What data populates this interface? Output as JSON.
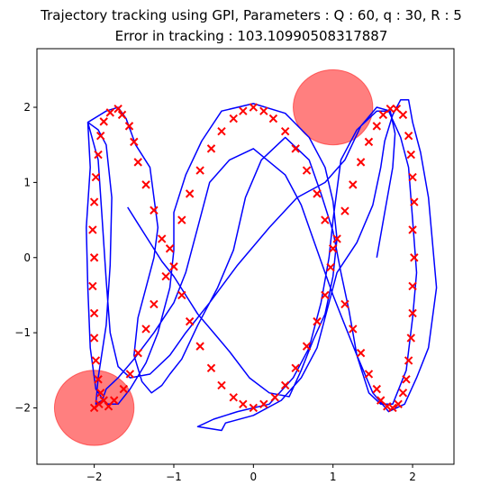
{
  "chart_data": {
    "type": "scatter",
    "title": "Trajectory tracking using GPI, Parameters : Q : 60, q : 30, R : 5",
    "subtitle": "Error in tracking : 103.10990508317887",
    "xlabel": "",
    "ylabel": "",
    "xlim": [
      -2.72,
      2.52
    ],
    "ylim": [
      -2.75,
      2.78
    ],
    "xticks": [
      -2,
      -1,
      0,
      1,
      2
    ],
    "yticks": [
      -2,
      -1,
      0,
      1,
      2
    ],
    "xtick_labels": [
      "−2",
      "−1",
      "0",
      "1",
      "2"
    ],
    "ytick_labels": [
      "−2",
      "−1",
      "0",
      "1",
      "2"
    ],
    "grid": false,
    "colors": {
      "reference": "#ff0000",
      "trajectory": "#0000ff",
      "obstacle": "#ff0000"
    },
    "obstacles": [
      {
        "cx": 1.0,
        "cy": 2.0,
        "r": 0.5
      },
      {
        "cx": -2.0,
        "cy": -2.0,
        "r": 0.5
      }
    ],
    "reference_points": [
      [
        -2.0,
        -2.0
      ],
      [
        -1.94,
        -1.95
      ],
      [
        -1.88,
        -1.9
      ],
      [
        -1.92,
        -1.8
      ],
      [
        -1.95,
        -1.62
      ],
      [
        -1.98,
        -1.37
      ],
      [
        -2.0,
        -1.07
      ],
      [
        -2.0,
        -0.74
      ],
      [
        -2.02,
        -0.38
      ],
      [
        -2.0,
        0.0
      ],
      [
        -2.02,
        0.37
      ],
      [
        -2.0,
        0.74
      ],
      [
        -1.98,
        1.07
      ],
      [
        -1.95,
        1.37
      ],
      [
        -1.92,
        1.62
      ],
      [
        -1.88,
        1.81
      ],
      [
        -1.8,
        1.93
      ],
      [
        -1.7,
        1.98
      ],
      [
        -1.65,
        1.9
      ],
      [
        -1.56,
        1.75
      ],
      [
        -1.5,
        1.54
      ],
      [
        -1.45,
        1.27
      ],
      [
        -1.35,
        0.97
      ],
      [
        -1.25,
        0.63
      ],
      [
        -1.15,
        0.25
      ],
      [
        -1.05,
        0.12
      ],
      [
        -1.0,
        -0.12
      ],
      [
        -1.1,
        -0.25
      ],
      [
        -1.25,
        -0.62
      ],
      [
        -1.35,
        -0.95
      ],
      [
        -1.45,
        -1.27
      ],
      [
        -1.55,
        -1.55
      ],
      [
        -1.63,
        -1.75
      ],
      [
        -1.75,
        -1.9
      ],
      [
        -1.82,
        -1.98
      ],
      [
        -0.9,
        -0.5
      ],
      [
        -0.8,
        -0.85
      ],
      [
        -0.67,
        -1.18
      ],
      [
        -0.53,
        -1.47
      ],
      [
        -0.4,
        -1.7
      ],
      [
        -0.25,
        -1.86
      ],
      [
        -0.13,
        -1.95
      ],
      [
        0.0,
        -2.0
      ],
      [
        0.13,
        -1.95
      ],
      [
        0.27,
        -1.86
      ],
      [
        0.4,
        -1.7
      ],
      [
        0.53,
        -1.47
      ],
      [
        0.67,
        -1.18
      ],
      [
        0.8,
        -0.85
      ],
      [
        0.9,
        -0.5
      ],
      [
        0.97,
        -0.13
      ],
      [
        1.0,
        0.12
      ],
      [
        1.05,
        0.25
      ],
      [
        0.9,
        0.5
      ],
      [
        0.8,
        0.85
      ],
      [
        0.67,
        1.16
      ],
      [
        0.53,
        1.45
      ],
      [
        0.4,
        1.68
      ],
      [
        0.25,
        1.85
      ],
      [
        0.13,
        1.95
      ],
      [
        0.0,
        2.0
      ],
      [
        -0.13,
        1.95
      ],
      [
        -0.25,
        1.85
      ],
      [
        -0.4,
        1.68
      ],
      [
        -0.53,
        1.45
      ],
      [
        -0.67,
        1.16
      ],
      [
        -0.8,
        0.85
      ],
      [
        -0.9,
        0.5
      ],
      [
        1.15,
        0.62
      ],
      [
        1.25,
        0.97
      ],
      [
        1.35,
        1.27
      ],
      [
        1.45,
        1.54
      ],
      [
        1.55,
        1.75
      ],
      [
        1.63,
        1.9
      ],
      [
        1.72,
        1.98
      ],
      [
        1.8,
        1.98
      ],
      [
        1.88,
        1.9
      ],
      [
        1.95,
        1.62
      ],
      [
        1.98,
        1.37
      ],
      [
        2.0,
        1.07
      ],
      [
        2.02,
        0.74
      ],
      [
        2.0,
        0.37
      ],
      [
        2.02,
        0.0
      ],
      [
        2.0,
        -0.38
      ],
      [
        2.0,
        -0.74
      ],
      [
        1.98,
        -1.07
      ],
      [
        1.95,
        -1.37
      ],
      [
        1.92,
        -1.62
      ],
      [
        1.88,
        -1.8
      ],
      [
        1.82,
        -1.95
      ],
      [
        1.75,
        -2.0
      ],
      [
        1.68,
        -1.98
      ],
      [
        1.6,
        -1.9
      ],
      [
        1.55,
        -1.75
      ],
      [
        1.45,
        -1.55
      ],
      [
        1.35,
        -1.27
      ],
      [
        1.25,
        -0.95
      ],
      [
        1.15,
        -0.62
      ]
    ],
    "trajectory": [
      [
        -1.58,
        0.67
      ],
      [
        -1.45,
        0.45
      ],
      [
        -1.3,
        0.2
      ],
      [
        -1.15,
        -0.05
      ],
      [
        -1.0,
        -0.25
      ],
      [
        -0.85,
        -0.5
      ],
      [
        -0.7,
        -0.75
      ],
      [
        -0.5,
        -1.0
      ],
      [
        -0.3,
        -1.25
      ],
      [
        -0.05,
        -1.6
      ],
      [
        0.2,
        -1.8
      ],
      [
        0.45,
        -1.85
      ],
      [
        0.6,
        -1.5
      ],
      [
        0.75,
        -1.1
      ],
      [
        0.9,
        -0.75
      ],
      [
        1.0,
        -0.25
      ],
      [
        1.05,
        0.25
      ],
      [
        1.0,
        0.75
      ],
      [
        0.9,
        1.2
      ],
      [
        0.7,
        1.6
      ],
      [
        0.4,
        1.92
      ],
      [
        0.0,
        2.05
      ],
      [
        -0.4,
        1.95
      ],
      [
        -0.65,
        1.55
      ],
      [
        -0.85,
        1.1
      ],
      [
        -1.0,
        0.6
      ],
      [
        -1.0,
        0.1
      ],
      [
        -1.05,
        -0.4
      ],
      [
        -1.2,
        -1.0
      ],
      [
        -1.35,
        -1.4
      ],
      [
        -1.55,
        -1.75
      ],
      [
        -1.7,
        -1.95
      ],
      [
        -1.85,
        -1.95
      ],
      [
        -1.98,
        -1.75
      ],
      [
        -2.05,
        -1.2
      ],
      [
        -2.08,
        -0.4
      ],
      [
        -2.1,
        0.4
      ],
      [
        -2.05,
        1.2
      ],
      [
        -2.08,
        1.8
      ],
      [
        -1.85,
        1.95
      ],
      [
        -1.7,
        2.0
      ],
      [
        -1.6,
        1.85
      ],
      [
        -1.48,
        1.5
      ],
      [
        -1.3,
        1.2
      ],
      [
        -1.25,
        0.8
      ],
      [
        -1.2,
        0.4
      ],
      [
        -1.25,
        0.0
      ],
      [
        -1.35,
        -0.4
      ],
      [
        -1.45,
        -0.8
      ],
      [
        -1.5,
        -1.3
      ],
      [
        -1.4,
        -1.65
      ],
      [
        -1.28,
        -1.8
      ],
      [
        -1.15,
        -1.7
      ],
      [
        -1.05,
        -1.55
      ],
      [
        -0.9,
        -1.35
      ],
      [
        -0.7,
        -0.9
      ],
      [
        -0.45,
        -0.4
      ],
      [
        -0.25,
        0.1
      ],
      [
        -0.1,
        0.8
      ],
      [
        0.1,
        1.3
      ],
      [
        0.4,
        1.6
      ],
      [
        0.7,
        1.3
      ],
      [
        0.85,
        0.85
      ],
      [
        1.0,
        0.35
      ],
      [
        1.1,
        -0.2
      ],
      [
        1.2,
        -0.7
      ],
      [
        1.3,
        -1.3
      ],
      [
        1.45,
        -1.8
      ],
      [
        1.6,
        -1.95
      ],
      [
        1.75,
        -1.95
      ],
      [
        1.92,
        -1.5
      ],
      [
        2.0,
        -0.8
      ],
      [
        2.05,
        -0.2
      ],
      [
        2.0,
        0.5
      ],
      [
        1.95,
        1.2
      ],
      [
        1.85,
        1.6
      ],
      [
        1.7,
        1.95
      ],
      [
        1.55,
        1.95
      ],
      [
        1.3,
        1.7
      ],
      [
        1.1,
        1.3
      ],
      [
        1.0,
        0.5
      ],
      [
        0.95,
        0.0
      ],
      [
        0.85,
        -0.6
      ],
      [
        0.7,
        -1.2
      ],
      [
        0.5,
        -1.6
      ],
      [
        0.2,
        -1.95
      ],
      [
        -0.2,
        -2.05
      ],
      [
        -0.5,
        -2.15
      ],
      [
        -0.7,
        -2.25
      ],
      [
        -0.4,
        -2.3
      ],
      [
        -0.35,
        -2.2
      ],
      [
        0.0,
        -2.1
      ],
      [
        0.35,
        -1.9
      ],
      [
        0.6,
        -1.6
      ],
      [
        0.8,
        -1.2
      ],
      [
        0.95,
        -0.6
      ],
      [
        1.05,
        -0.2
      ],
      [
        1.3,
        0.2
      ],
      [
        1.5,
        0.7
      ],
      [
        1.6,
        1.2
      ],
      [
        1.65,
        1.55
      ],
      [
        1.75,
        1.9
      ],
      [
        1.85,
        2.1
      ],
      [
        1.95,
        2.1
      ],
      [
        2.0,
        1.8
      ],
      [
        2.1,
        1.4
      ],
      [
        2.2,
        0.8
      ],
      [
        2.3,
        -0.4
      ],
      [
        2.2,
        -1.2
      ],
      [
        2.05,
        -1.6
      ],
      [
        1.9,
        -1.95
      ],
      [
        1.7,
        -2.05
      ],
      [
        1.5,
        -1.8
      ],
      [
        1.3,
        -1.3
      ],
      [
        1.15,
        -0.9
      ],
      [
        1.0,
        -0.5
      ],
      [
        0.8,
        0.1
      ],
      [
        0.6,
        0.7
      ],
      [
        0.4,
        1.1
      ],
      [
        0.0,
        1.45
      ],
      [
        -0.3,
        1.3
      ],
      [
        -0.55,
        1.0
      ],
      [
        -0.7,
        0.4
      ],
      [
        -0.85,
        -0.2
      ],
      [
        -1.0,
        -0.6
      ],
      [
        -1.25,
        -1.0
      ],
      [
        -1.5,
        -1.35
      ],
      [
        -1.7,
        -1.6
      ],
      [
        -1.85,
        -1.75
      ],
      [
        -1.9,
        -1.9
      ],
      [
        -1.98,
        -1.95
      ],
      [
        -1.95,
        -1.6
      ],
      [
        -1.85,
        -0.9
      ],
      [
        -1.8,
        -0.1
      ],
      [
        -1.78,
        0.8
      ],
      [
        -1.85,
        1.5
      ],
      [
        -1.95,
        1.7
      ],
      [
        -2.08,
        1.8
      ],
      [
        -1.95,
        1.3
      ],
      [
        -1.9,
        0.5
      ],
      [
        -1.85,
        -0.3
      ],
      [
        -1.8,
        -1.0
      ],
      [
        -1.7,
        -1.45
      ],
      [
        -1.55,
        -1.6
      ],
      [
        -1.3,
        -1.55
      ],
      [
        -1.05,
        -1.3
      ],
      [
        -0.85,
        -1.0
      ],
      [
        -0.55,
        -0.6
      ],
      [
        -0.2,
        -0.1
      ],
      [
        0.2,
        0.4
      ],
      [
        0.55,
        0.8
      ],
      [
        0.9,
        1.0
      ],
      [
        1.15,
        1.3
      ],
      [
        1.35,
        1.75
      ],
      [
        1.55,
        2.0
      ],
      [
        1.72,
        1.95
      ],
      [
        1.78,
        1.65
      ],
      [
        1.75,
        1.2
      ],
      [
        1.65,
        0.6
      ],
      [
        1.55,
        0.0
      ]
    ]
  }
}
